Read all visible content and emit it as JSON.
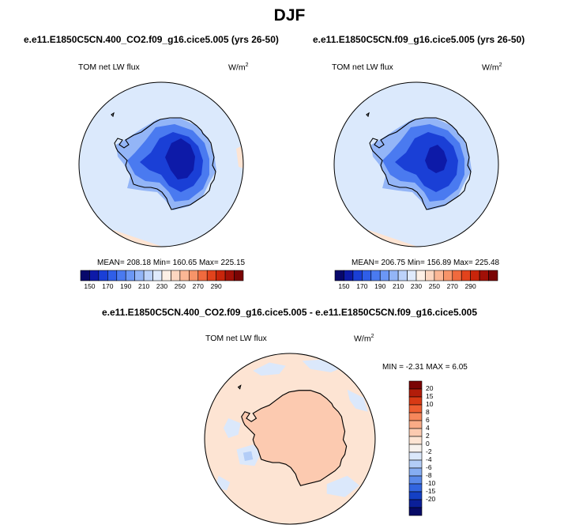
{
  "title": "DJF",
  "panels": [
    {
      "case": "e.e11.E1850C5CN.400_CO2.f09_g16.cice5.005 (yrs 26-50)",
      "variable": "TOM net LW flux",
      "units_base": "W/m",
      "units_exp": "2",
      "stats": "MEAN= 208.18  Min= 160.65  Max= 225.15"
    },
    {
      "case": "e.e11.E1850C5CN.f09_g16.cice5.005 (yrs 26-50)",
      "variable": "TOM net LW flux",
      "units_base": "W/m",
      "units_exp": "2",
      "stats": "MEAN= 206.75  Min= 156.89  Max= 225.48"
    }
  ],
  "diff_panel": {
    "title": "e.e11.E1850C5CN.400_CO2.f09_g16.cice5.005 - e.e11.E1850C5CN.f09_g16.cice5.005",
    "variable": "TOM net LW flux",
    "units_base": "W/m",
    "units_exp": "2",
    "stats": "MIN =  -2.31 MAX =   6.05"
  },
  "colorbar_abs": {
    "labels": [
      "150",
      "170",
      "190",
      "210",
      "230",
      "250",
      "270",
      "290"
    ],
    "colors": [
      "#08086b",
      "#0d1aa8",
      "#1a3fd6",
      "#2f5ee8",
      "#4a7af0",
      "#6b97f5",
      "#93b5f7",
      "#bcd2fa",
      "#dfeafc",
      "#fdf0e6",
      "#fcd6c0",
      "#fbb795",
      "#f79469",
      "#f06a3e",
      "#e2431c",
      "#c8250b",
      "#a11007",
      "#7a0404"
    ]
  },
  "colorbar_diff": {
    "labels": [
      "20",
      "15",
      "10",
      "8",
      "6",
      "4",
      "2",
      "0",
      "-2",
      "-4",
      "-6",
      "-8",
      "-10",
      "-15",
      "-20"
    ],
    "colors": [
      "#7a0404",
      "#b21d0a",
      "#d83a15",
      "#ee5e31",
      "#f6875b",
      "#f9ab86",
      "#fccab0",
      "#fde4d3",
      "#f7f2ee",
      "#dbe8fb",
      "#b3cdf7",
      "#86adf2",
      "#5a89ea",
      "#3265e0",
      "#1440c4",
      "#0b1f98",
      "#070a66"
    ]
  },
  "map_colors": {
    "ocean_abs": "#dbe9fc",
    "warm_patch": "#fde4d3",
    "ice_light": "#93b5f7",
    "ice_mid": "#4a7af0",
    "ice_dark": "#1a3fd6",
    "ice_core": "#0d1aa8",
    "diff_bg": "#fde4d3",
    "diff_land": "#fccab0",
    "diff_blue": "#dbe8fb",
    "diff_blue2": "#b3cdf7"
  }
}
